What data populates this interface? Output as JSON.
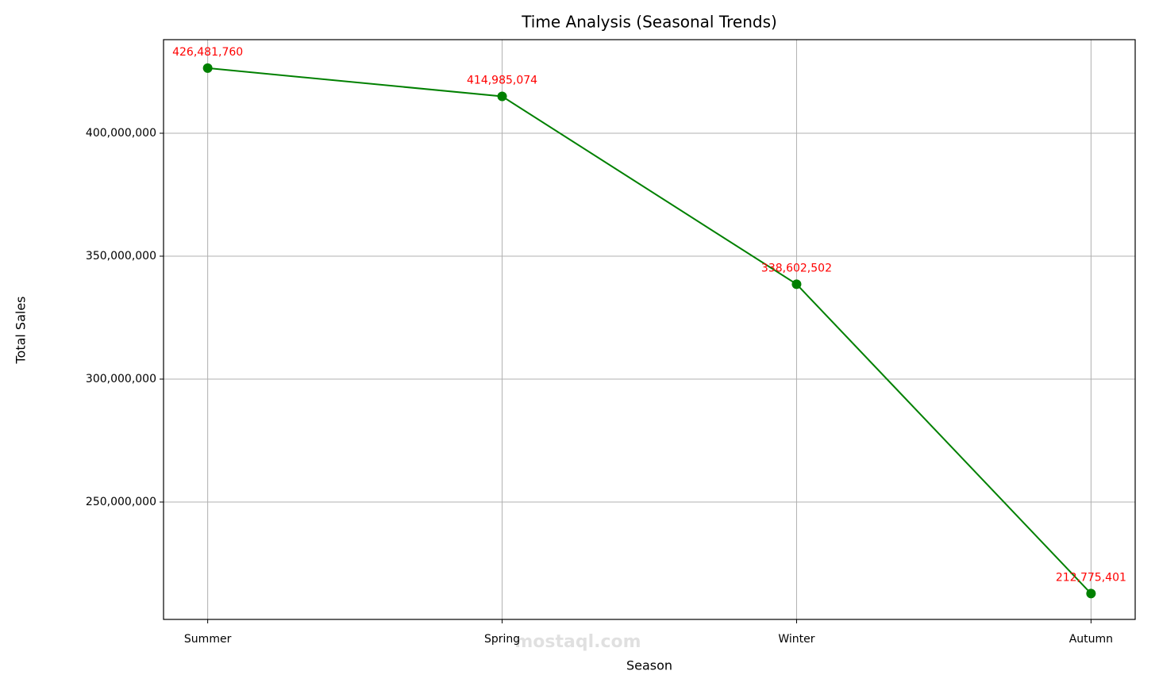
{
  "chart_data": {
    "type": "line",
    "title": "Time Analysis (Seasonal Trends)",
    "x_label": "Season",
    "y_label": "Total Sales",
    "categories": [
      "Summer",
      "Spring",
      "Winter",
      "Autumn"
    ],
    "series": [
      {
        "name": "Total Sales",
        "color": "#008000",
        "values": [
          426481760,
          414985074,
          338602502,
          212775401
        ],
        "value_labels": [
          "426,481,760",
          "414,985,074",
          "338,602,502",
          "212,775,401"
        ]
      }
    ],
    "value_label_color": "#ff0000",
    "ylim": [
      202260000,
      438060000
    ],
    "yticks": [
      {
        "value": 250000000,
        "label": "250,000,000"
      },
      {
        "value": 300000000,
        "label": "300,000,000"
      },
      {
        "value": 350000000,
        "label": "350,000,000"
      },
      {
        "value": 400000000,
        "label": "400,000,000"
      }
    ],
    "grid": true,
    "watermark": "mostaql.com"
  }
}
